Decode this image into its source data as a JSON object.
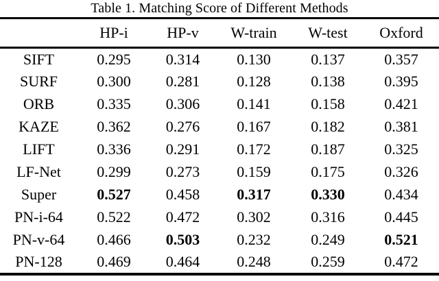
{
  "page": {
    "background_color": "#ffffff",
    "text_color": "#000000"
  },
  "chart_data": {
    "type": "table",
    "title": "Table 1. Matching Score of Different Methods",
    "columns": [
      "HP-i",
      "HP-v",
      "W-train",
      "W-test",
      "Oxford"
    ],
    "rows": [
      {
        "method": "SIFT",
        "values": [
          "0.295",
          "0.314",
          "0.130",
          "0.137",
          "0.357"
        ],
        "bold_indices": []
      },
      {
        "method": "SURF",
        "values": [
          "0.300",
          "0.281",
          "0.128",
          "0.138",
          "0.395"
        ],
        "bold_indices": []
      },
      {
        "method": "ORB",
        "values": [
          "0.335",
          "0.306",
          "0.141",
          "0.158",
          "0.421"
        ],
        "bold_indices": []
      },
      {
        "method": "KAZE",
        "values": [
          "0.362",
          "0.276",
          "0.167",
          "0.182",
          "0.381"
        ],
        "bold_indices": []
      },
      {
        "method": "LIFT",
        "values": [
          "0.336",
          "0.291",
          "0.172",
          "0.187",
          "0.325"
        ],
        "bold_indices": []
      },
      {
        "method": "LF-Net",
        "values": [
          "0.299",
          "0.273",
          "0.159",
          "0.175",
          "0.326"
        ],
        "bold_indices": []
      },
      {
        "method": "Super",
        "values": [
          "0.527",
          "0.458",
          "0.317",
          "0.330",
          "0.434"
        ],
        "bold_indices": [
          0,
          2,
          3
        ]
      },
      {
        "method": "PN-i-64",
        "values": [
          "0.522",
          "0.472",
          "0.302",
          "0.316",
          "0.445"
        ],
        "bold_indices": []
      },
      {
        "method": "PN-v-64",
        "values": [
          "0.466",
          "0.503",
          "0.232",
          "0.249",
          "0.521"
        ],
        "bold_indices": [
          1,
          4
        ]
      },
      {
        "method": "PN-128",
        "values": [
          "0.469",
          "0.464",
          "0.248",
          "0.259",
          "0.472"
        ],
        "bold_indices": []
      }
    ]
  }
}
